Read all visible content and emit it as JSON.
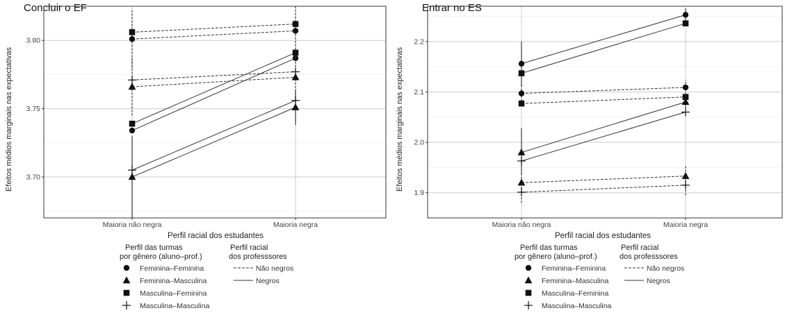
{
  "chart_data": [
    {
      "type": "line",
      "title": "Concluir o EF",
      "xlabel": "Perfil racial dos estudantes",
      "ylabel": "Efeitos médios marginais nas expectativas",
      "categories": [
        "Maioria não negra",
        "Maioria negra"
      ],
      "ylim": [
        3.67,
        3.825
      ],
      "yticks": [
        "3.70",
        "3.75",
        "3.80"
      ],
      "grid": true,
      "series": [
        {
          "name": "Feminina–Feminina / Não negros",
          "group": "Feminina–Feminina",
          "teacher": "Não negros",
          "values": [
            3.801,
            3.807
          ],
          "errors": [
            [
              3.78,
              3.822
            ],
            [
              3.788,
              3.826
            ]
          ]
        },
        {
          "name": "Feminina–Feminina / Negros",
          "group": "Feminina–Feminina",
          "teacher": "Negros",
          "values": [
            3.734,
            3.787
          ],
          "errors": null
        },
        {
          "name": "Feminina–Masculina / Não negros",
          "group": "Feminina–Masculina",
          "teacher": "Não negros",
          "values": [
            3.766,
            3.773
          ],
          "errors": [
            [
              3.745,
              3.787
            ],
            [
              3.755,
              3.79
            ]
          ]
        },
        {
          "name": "Feminina–Masculina / Negros",
          "group": "Feminina–Masculina",
          "teacher": "Negros",
          "values": [
            3.7,
            3.751
          ],
          "errors": [
            [
              3.67,
              3.73
            ],
            [
              3.738,
              3.764
            ]
          ]
        },
        {
          "name": "Masculina–Feminina / Não negros",
          "group": "Masculina–Feminina",
          "teacher": "Não negros",
          "values": [
            3.806,
            3.812
          ],
          "errors": null
        },
        {
          "name": "Masculina–Feminina / Negros",
          "group": "Masculina–Feminina",
          "teacher": "Negros",
          "values": [
            3.739,
            3.791
          ],
          "errors": null
        },
        {
          "name": "Masculina–Masculina / Não negros",
          "group": "Masculina–Masculina",
          "teacher": "Não negros",
          "values": [
            3.771,
            3.777
          ],
          "errors": null
        },
        {
          "name": "Masculina–Masculina / Negros",
          "group": "Masculina–Masculina",
          "teacher": "Negros",
          "values": [
            3.705,
            3.756
          ],
          "errors": null
        }
      ]
    },
    {
      "type": "line",
      "title": "Entrar no ES",
      "xlabel": "Perfil racial dos estudantes",
      "ylabel": "Efeitos médios marginais nas expectativas",
      "categories": [
        "Maioria não negra",
        "Maioria negra"
      ],
      "ylim": [
        1.85,
        2.27
      ],
      "yticks": [
        "1.9",
        "2.0",
        "2.1",
        "2.2"
      ],
      "grid": true,
      "series": [
        {
          "name": "Feminina–Feminina / Não negros",
          "group": "Feminina–Feminina",
          "teacher": "Não negros",
          "values": [
            2.097,
            2.109
          ],
          "errors": [
            [
              2.075,
              2.119
            ],
            [
              2.095,
              2.124
            ]
          ]
        },
        {
          "name": "Feminina–Feminina / Negros",
          "group": "Feminina–Feminina",
          "teacher": "Negros",
          "values": [
            2.156,
            2.253
          ],
          "errors": [
            [
              2.11,
              2.2
            ],
            [
              2.24,
              2.266
            ]
          ]
        },
        {
          "name": "Feminina–Masculina / Não negros",
          "group": "Feminina–Masculina",
          "teacher": "Não negros",
          "values": [
            1.92,
            1.933
          ],
          "errors": [
            [
              1.9,
              1.94
            ],
            [
              1.914,
              1.953
            ]
          ]
        },
        {
          "name": "Feminina–Masculina / Negros",
          "group": "Feminina–Masculina",
          "teacher": "Negros",
          "values": [
            1.98,
            2.08
          ],
          "errors": [
            [
              1.938,
              2.028
            ],
            [
              2.068,
              2.092
            ]
          ]
        },
        {
          "name": "Masculina–Feminina / Não negros",
          "group": "Masculina–Feminina",
          "teacher": "Não negros",
          "values": [
            2.077,
            2.09
          ],
          "errors": null
        },
        {
          "name": "Masculina–Feminina / Negros",
          "group": "Masculina–Feminina",
          "teacher": "Negros",
          "values": [
            2.137,
            2.236
          ],
          "errors": null
        },
        {
          "name": "Masculina–Masculina / Não negros",
          "group": "Masculina–Masculina",
          "teacher": "Não negros",
          "values": [
            1.901,
            1.915
          ],
          "errors": [
            [
              1.88,
              1.92
            ],
            [
              1.895,
              1.935
            ]
          ]
        },
        {
          "name": "Masculina–Masculina / Negros",
          "group": "Masculina–Masculina",
          "teacher": "Negros",
          "values": [
            1.963,
            2.06
          ],
          "errors": null
        }
      ]
    }
  ],
  "legend": {
    "groups_title_1": "Perfil das turmas",
    "groups_title_2": "por gênero (aluno–prof.)",
    "teacher_title_1": "Perfil racial",
    "teacher_title_2": "dos professsores",
    "groups": [
      {
        "label": "Feminina–Feminina",
        "shape": "circle"
      },
      {
        "label": "Feminina–Masculina",
        "shape": "triangle"
      },
      {
        "label": "Masculina–Feminina",
        "shape": "square"
      },
      {
        "label": "Masculina–Masculina",
        "shape": "plus"
      }
    ],
    "teachers": [
      {
        "label": "Não negros",
        "linetype": "dashed"
      },
      {
        "label": "Negros",
        "linetype": "solid"
      }
    ]
  },
  "colors": {
    "line": "#333333",
    "marker": "#111111",
    "grid": "#cccccc",
    "panel_border": "#333333"
  }
}
